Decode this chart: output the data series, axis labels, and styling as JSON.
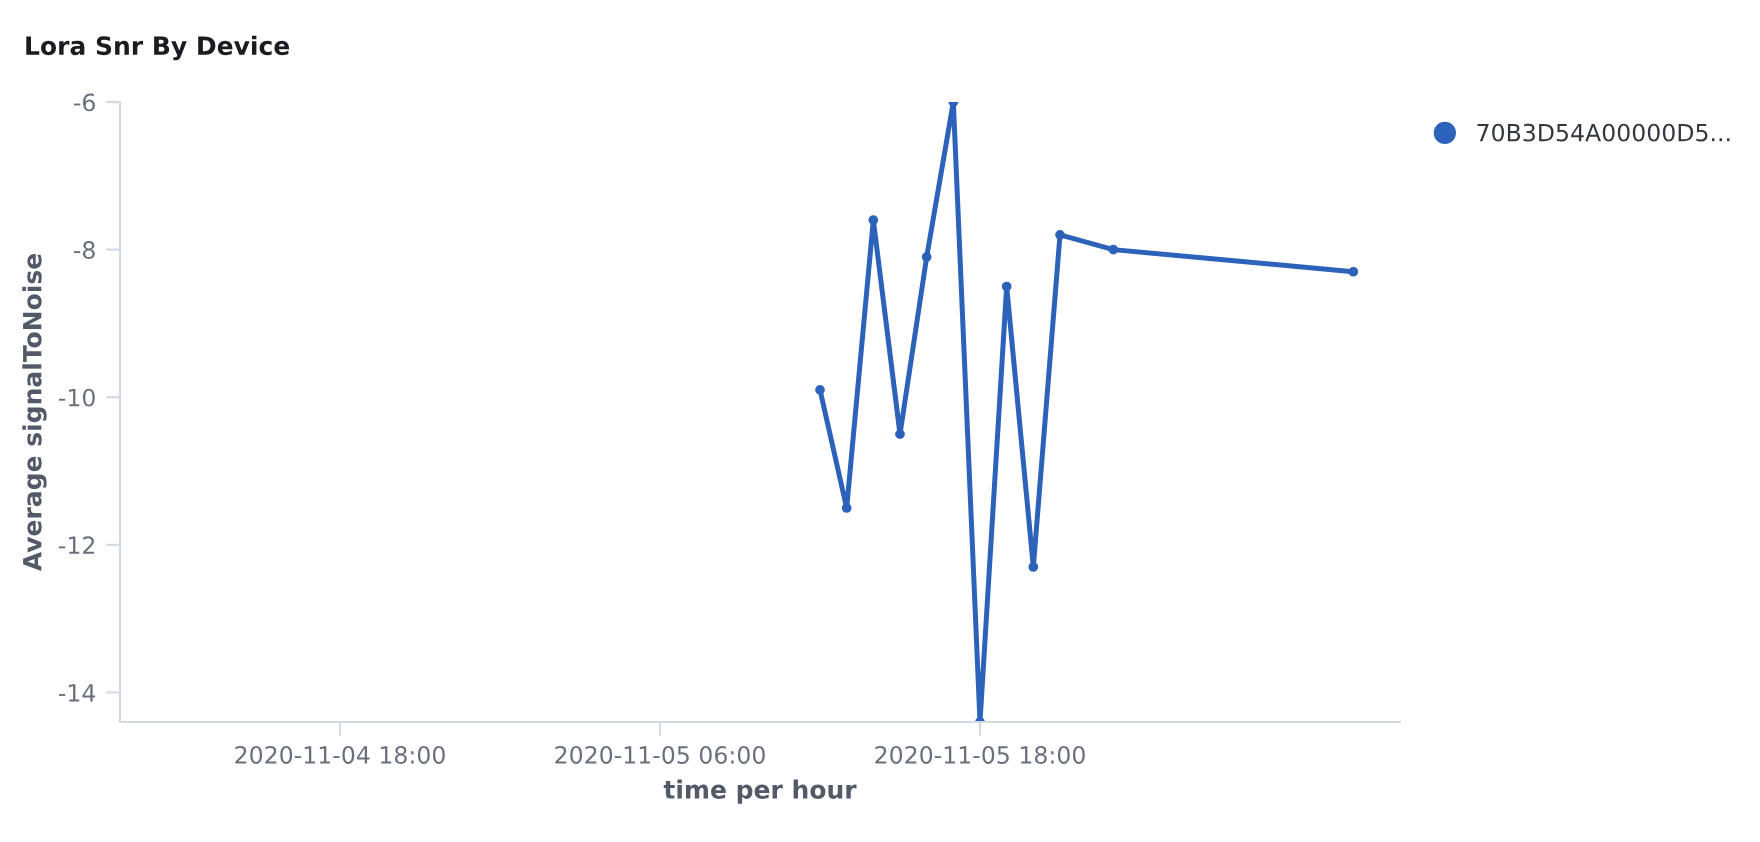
{
  "chart_data": {
    "type": "line",
    "title": "Lora Snr By Device",
    "xlabel": "time per hour",
    "ylabel": "Average signalToNoise",
    "series": [
      {
        "name": "70B3D54A00000D5...",
        "color": "#2d62ba",
        "x": [
          "2020-11-05T12:00",
          "2020-11-05T13:00",
          "2020-11-05T14:00",
          "2020-11-05T15:00",
          "2020-11-05T16:00",
          "2020-11-05T17:00",
          "2020-11-05T18:00",
          "2020-11-05T19:00",
          "2020-11-05T20:00",
          "2020-11-05T21:00",
          "2020-11-05T23:00",
          "2020-11-06T08:00"
        ],
        "values": [
          -9.9,
          -11.5,
          -7.6,
          -10.5,
          -8.1,
          -6.0,
          -14.4,
          -8.5,
          -12.3,
          -7.8,
          -8.0,
          -8.3
        ]
      }
    ],
    "xlim": [
      "2020-11-04T09:45",
      "2020-11-06T09:45"
    ],
    "xticks": [
      {
        "value": "2020-11-04T18:00",
        "label": "2020-11-04 18:00"
      },
      {
        "value": "2020-11-05T06:00",
        "label": "2020-11-05 06:00"
      },
      {
        "value": "2020-11-05T18:00",
        "label": "2020-11-05 18:00"
      }
    ],
    "ylim": [
      -14.4,
      -6
    ],
    "yticks": [
      -14,
      -12,
      -10,
      -8,
      -6
    ],
    "grid": false,
    "legend": "top right",
    "marker": "circle",
    "line_style": "solid"
  }
}
